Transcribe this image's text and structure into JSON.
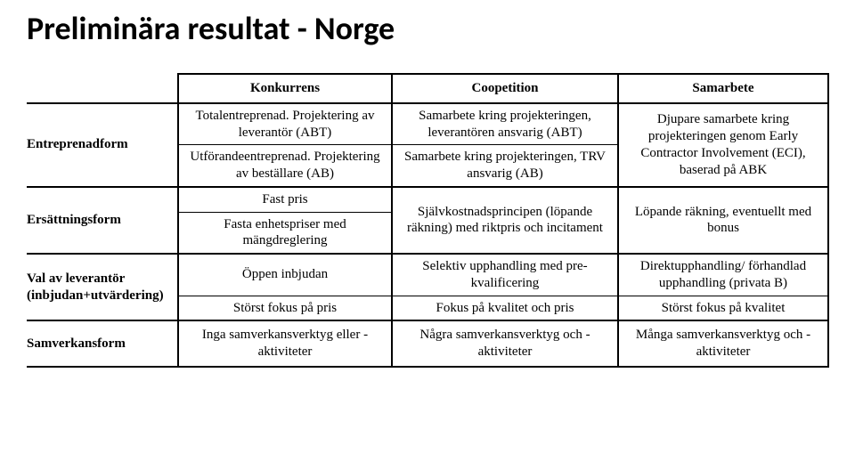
{
  "title": "Preliminära resultat - Norge",
  "header": {
    "konkurrens": "Konkurrens",
    "coopetition": "Coopetition",
    "samarbete": "Samarbete"
  },
  "rows": {
    "entreprenadform": {
      "label": "Entreprenadform",
      "konkurrens_a": "Totalentreprenad.\nProjektering av leverantör (ABT)",
      "konkurrens_b": "Utförandeentreprenad.\nProjektering av beställare (AB)",
      "coopetition_a": "Samarbete kring projekteringen, leverantören ansvarig (ABT)",
      "coopetition_b": "Samarbete kring projekteringen, TRV ansvarig (AB)",
      "samarbete": "Djupare samarbete kring projekteringen genom Early Contractor Involvement (ECI), baserad på ABK"
    },
    "ersattningsform": {
      "label": "Ersättningsform",
      "konkurrens_a": "Fast pris",
      "konkurrens_b": "Fasta enhetspriser med mängdreglering",
      "coopetition": "Självkostnadsprincipen (löpande räkning) med riktpris och incitament",
      "samarbete": "Löpande räkning,\neventuellt med bonus"
    },
    "val": {
      "label": "Val av leverantör (inbjudan+utvärdering)",
      "konkurrens_a": "Öppen inbjudan",
      "konkurrens_b": "Störst fokus på pris",
      "coopetition_a": "Selektiv upphandling med pre-kvalificering",
      "coopetition_b": "Fokus på kvalitet och pris",
      "samarbete_a": "Direktupphandling/ förhandlad upphandling (privata B)",
      "samarbete_b": "Störst fokus på kvalitet"
    },
    "samverkansform": {
      "label": "Samverkansform",
      "konkurrens": "Inga samverkansverktyg eller -aktiviteter",
      "coopetition": "Några samverkansverktyg och -aktiviteter",
      "samarbete": "Många samverkansverktyg och -aktiviteter"
    }
  }
}
